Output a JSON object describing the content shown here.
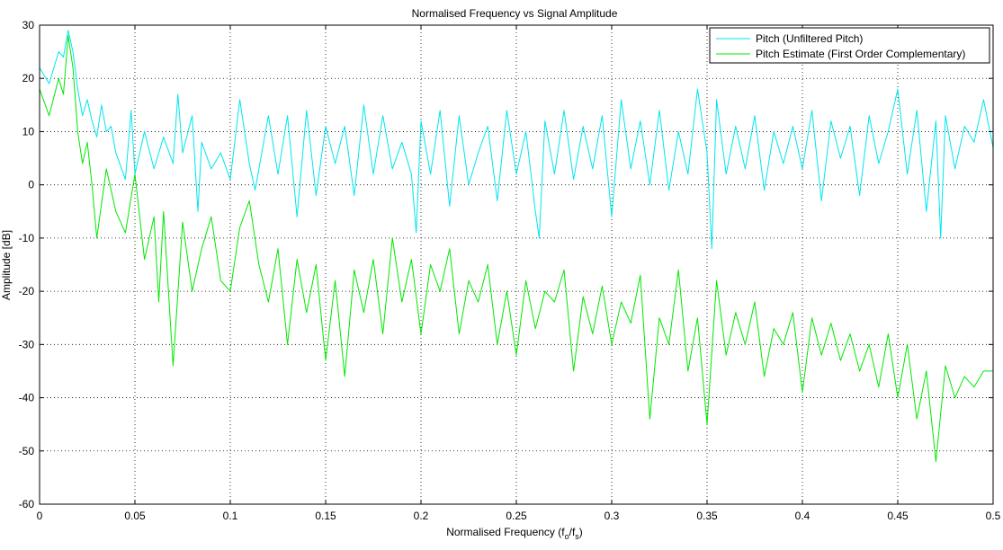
{
  "chart_data": {
    "type": "line",
    "title": "Normalised Frequency vs Signal Amplitude",
    "xlabel_main": "Normalised Frequency (f",
    "xlabel_sub1": "o",
    "xlabel_mid": "/f",
    "xlabel_sub2": "s",
    "xlabel_end": ")",
    "ylabel": "Amplitude [dB]",
    "xlim": [
      0,
      0.5
    ],
    "ylim": [
      -60,
      30
    ],
    "xticks": [
      0,
      0.05,
      0.1,
      0.15,
      0.2,
      0.25,
      0.3,
      0.35,
      0.4,
      0.45,
      0.5
    ],
    "xtick_labels": [
      "0",
      "0.05",
      "0.1",
      "0.15",
      "0.2",
      "0.25",
      "0.3",
      "0.35",
      "0.4",
      "0.45",
      "0.5"
    ],
    "yticks": [
      -60,
      -50,
      -40,
      -30,
      -20,
      -10,
      0,
      10,
      20,
      30
    ],
    "ytick_labels": [
      "-60",
      "-50",
      "-40",
      "-30",
      "-20",
      "-10",
      "0",
      "10",
      "20",
      "30"
    ],
    "grid": true,
    "legend_position": "top-right",
    "series": [
      {
        "name": "Pitch (Unfiltered Pitch)",
        "color": "#00e5ee",
        "x": [
          0,
          0.005,
          0.01,
          0.0125,
          0.015,
          0.0175,
          0.02,
          0.0225,
          0.025,
          0.0275,
          0.03,
          0.0325,
          0.035,
          0.0375,
          0.04,
          0.045,
          0.048,
          0.05,
          0.055,
          0.06,
          0.065,
          0.07,
          0.0725,
          0.075,
          0.08,
          0.083,
          0.085,
          0.09,
          0.095,
          0.1,
          0.105,
          0.11,
          0.113,
          0.12,
          0.125,
          0.13,
          0.135,
          0.14,
          0.145,
          0.15,
          0.155,
          0.16,
          0.165,
          0.17,
          0.175,
          0.18,
          0.185,
          0.19,
          0.195,
          0.1975,
          0.2,
          0.205,
          0.21,
          0.215,
          0.22,
          0.225,
          0.23,
          0.235,
          0.24,
          0.245,
          0.25,
          0.255,
          0.26,
          0.262,
          0.265,
          0.27,
          0.275,
          0.28,
          0.285,
          0.29,
          0.295,
          0.3,
          0.305,
          0.31,
          0.315,
          0.32,
          0.325,
          0.33,
          0.335,
          0.34,
          0.345,
          0.35,
          0.3525,
          0.355,
          0.36,
          0.365,
          0.37,
          0.375,
          0.38,
          0.385,
          0.39,
          0.395,
          0.4,
          0.405,
          0.41,
          0.415,
          0.42,
          0.425,
          0.43,
          0.435,
          0.44,
          0.445,
          0.45,
          0.455,
          0.46,
          0.465,
          0.47,
          0.4725,
          0.475,
          0.48,
          0.485,
          0.49,
          0.495,
          0.5
        ],
        "y": [
          22,
          19,
          25,
          24,
          29,
          25,
          18,
          13,
          16,
          12,
          9,
          15,
          10,
          11,
          6,
          1,
          14,
          2,
          10,
          3,
          9,
          4,
          17,
          6,
          13,
          -5,
          8,
          3,
          6,
          1,
          16,
          4,
          -1,
          13,
          2,
          13,
          -6,
          14,
          -2,
          11,
          4,
          11,
          -2,
          15,
          2,
          13,
          3,
          8,
          2,
          -9,
          12,
          2,
          14,
          -4,
          13,
          0,
          6,
          11,
          -3,
          14,
          2,
          10,
          -5,
          -10,
          12,
          2,
          14,
          1,
          11,
          3,
          13,
          -6,
          16,
          3,
          12,
          0,
          14,
          -1,
          10,
          2,
          18,
          6,
          -12,
          16,
          2,
          11,
          3,
          13,
          -1,
          10,
          4,
          11,
          3,
          14,
          -3,
          12,
          5,
          11,
          -2,
          13,
          4,
          10,
          18,
          2,
          14,
          -5,
          12,
          -10,
          13,
          3,
          11,
          8,
          16,
          7
        ]
      },
      {
        "name": "Pitch Estimate (First Order Complementary)",
        "color": "#00e800",
        "x": [
          0,
          0.005,
          0.01,
          0.0125,
          0.015,
          0.0175,
          0.02,
          0.0225,
          0.025,
          0.0275,
          0.03,
          0.035,
          0.04,
          0.045,
          0.05,
          0.055,
          0.06,
          0.0625,
          0.065,
          0.07,
          0.075,
          0.08,
          0.085,
          0.09,
          0.095,
          0.1,
          0.105,
          0.11,
          0.115,
          0.12,
          0.125,
          0.13,
          0.135,
          0.14,
          0.145,
          0.15,
          0.155,
          0.16,
          0.165,
          0.17,
          0.175,
          0.18,
          0.185,
          0.19,
          0.195,
          0.2,
          0.205,
          0.21,
          0.215,
          0.22,
          0.225,
          0.23,
          0.235,
          0.24,
          0.245,
          0.25,
          0.255,
          0.26,
          0.265,
          0.27,
          0.275,
          0.28,
          0.285,
          0.29,
          0.295,
          0.3,
          0.305,
          0.31,
          0.315,
          0.32,
          0.325,
          0.33,
          0.335,
          0.34,
          0.345,
          0.35,
          0.355,
          0.36,
          0.365,
          0.37,
          0.375,
          0.38,
          0.385,
          0.39,
          0.395,
          0.4,
          0.405,
          0.41,
          0.415,
          0.42,
          0.425,
          0.43,
          0.435,
          0.44,
          0.445,
          0.45,
          0.455,
          0.46,
          0.465,
          0.47,
          0.475,
          0.48,
          0.485,
          0.49,
          0.495,
          0.5
        ],
        "y": [
          18,
          13,
          20,
          17,
          28,
          22,
          10,
          4,
          8,
          0,
          -10,
          3,
          -5,
          -9,
          2,
          -14,
          -6,
          -22,
          -5,
          -34,
          -7,
          -20,
          -12,
          -6,
          -18,
          -20,
          -8,
          -3,
          -15,
          -22,
          -12,
          -30,
          -14,
          -24,
          -15,
          -33,
          -18,
          -36,
          -16,
          -24,
          -14,
          -28,
          -10,
          -22,
          -14,
          -28,
          -15,
          -20,
          -12,
          -28,
          -18,
          -22,
          -15,
          -30,
          -20,
          -32,
          -18,
          -27,
          -20,
          -22,
          -16,
          -35,
          -21,
          -28,
          -19,
          -30,
          -22,
          -26,
          -17,
          -44,
          -25,
          -30,
          -16,
          -35,
          -25,
          -45,
          -18,
          -32,
          -24,
          -30,
          -22,
          -36,
          -27,
          -30,
          -24,
          -39,
          -25,
          -32,
          -26,
          -33,
          -28,
          -35,
          -30,
          -38,
          -28,
          -40,
          -30,
          -44,
          -35,
          -52,
          -34,
          -40,
          -36,
          -38,
          -35,
          -35
        ]
      }
    ]
  }
}
